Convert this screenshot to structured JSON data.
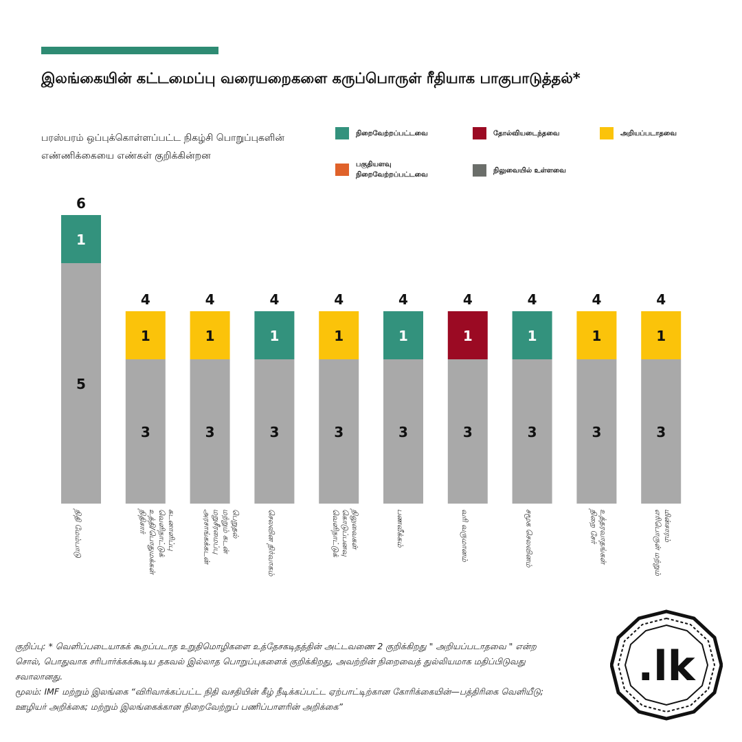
{
  "title": "இலங்கையின் கட்டமைப்பு வரையறைகளை கருப்பொருள் ரீதியாக பாகுபாடுத்தல்*",
  "subtitle": "பரஸ்பரம் ஒப்புக்கொள்ளப்பட்ட நிகழ்சி பொறுப்புகளின் எண்ணிக்கையை எண்கள் குறிக்கின்றன",
  "legend": [
    {
      "label": "நிறைவேற்றப்பட்டவை",
      "color": "#33927d"
    },
    {
      "label": "தோல்வியடைந்தவை",
      "color": "#9b0a23"
    },
    {
      "label": "அறியப்படாதவை",
      "color": "#fbc30a"
    },
    {
      "label": "பகுதியளவு நிறைவேற்றப்பட்டவை",
      "color": "#e0622a"
    },
    {
      "label": "நிலுவையில் உள்ளவை",
      "color": "#6b6e6a"
    }
  ],
  "chart_data": {
    "type": "bar",
    "stacked": true,
    "categories": [
      "நிதி மேம்பாடு",
      "நிதிசார் உத்தி/பொதுமக்கள் வெளிநாட்டுக் கடனாளிப்பு",
      "அரசாங்கக்கடன் மறுசீரமைப்பு மற்றும் கடன் பெறுதல்",
      "செலவின நிர்வாகம்",
      "வெளிநாட்டுக் கொடுப்பனவு நிலுவைகள்",
      "பணவீக்கம்",
      "வரி வருமானம்",
      "சமூக செலவினம்",
      "நிறை சேர் உத்தரவாதங்கள்",
      "எரிபொருள் மற்றும் மின்சாரம்"
    ],
    "series": [
      {
        "name": "நிலுவையில் உள்ளவை",
        "color": "#a9a9a9",
        "values": [
          5,
          3,
          3,
          3,
          3,
          3,
          3,
          3,
          3,
          3
        ]
      },
      {
        "name": "",
        "colors": [
          "#33927d",
          "#fbc30a",
          "#fbc30a",
          "#33927d",
          "#fbc30a",
          "#33927d",
          "#9b0a23",
          "#33927d",
          "#fbc30a",
          "#fbc30a"
        ],
        "values": [
          1,
          1,
          1,
          1,
          1,
          1,
          1,
          1,
          1,
          1
        ]
      }
    ],
    "totals": [
      6,
      4,
      4,
      4,
      4,
      4,
      4,
      4,
      4,
      4
    ],
    "ylim": [
      0,
      6
    ],
    "xlabel": "",
    "ylabel": ""
  },
  "footer": {
    "note": "குறிப்பு: * வெளிப்படையாகக் கூறப்படாத உறுதிமொழிகளை உத்தேசகடிதத்தின் அட்டவணை 2 குறிக்கிறது \" அறியப்படாதவை \" என்ற சொல், பொதுவாக சரிபார்க்கக்கூடிய தகவல் இல்லாத பொறுப்புகளைக் குறிக்கிறது, அவற்றின் நிறைவைத் துல்லியமாக மதிப்பிடுவது சவாலானது.",
    "source": "மூலம்: IMF மற்றும் இலங்கை “விரிவாக்கப்பட்ட நிதி வசதியின் கீழ் நீடிக்கப்பட்ட ஏற்பாட்டிற்கான கோரிக்கையின்—பத்திரிகை வெளியீடு; ஊழியர் அறிக்கை; மற்றும் இலங்கைக்கான நிறைவேற்றுப் பணிப்பாளரின் அறிக்கை”"
  },
  "logo": {
    "text": ".lk"
  }
}
